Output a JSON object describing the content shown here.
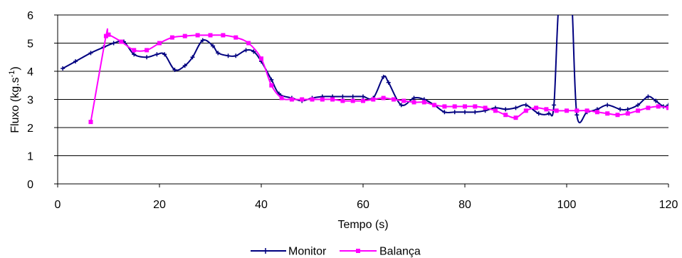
{
  "chart_data": {
    "type": "line",
    "title": "",
    "xlabel": "Tempo (s)",
    "ylabel_main": "Fluxo (kg.s",
    "ylabel_sup": "-1",
    "ylabel_end": ")",
    "xlim": [
      0,
      120
    ],
    "ylim": [
      0,
      6
    ],
    "x_ticks": [
      "0",
      "20",
      "40",
      "60",
      "80",
      "100",
      "120"
    ],
    "y_ticks": [
      "0",
      "1",
      "2",
      "3",
      "4",
      "5",
      "6"
    ],
    "grid": "horizontal",
    "legend_position": "bottom",
    "series": [
      {
        "name": "Monitor",
        "color": "#000080",
        "marker": "plus",
        "points": [
          [
            1,
            4.1
          ],
          [
            3.5,
            4.35
          ],
          [
            6.5,
            4.65
          ],
          [
            9,
            4.85
          ],
          [
            11,
            5.0
          ],
          [
            13,
            5.05
          ],
          [
            15,
            4.6
          ],
          [
            17.5,
            4.5
          ],
          [
            19.5,
            4.6
          ],
          [
            21,
            4.6
          ],
          [
            23,
            4.05
          ],
          [
            25,
            4.2
          ],
          [
            26.5,
            4.5
          ],
          [
            28.5,
            5.1
          ],
          [
            30.5,
            4.9
          ],
          [
            31.5,
            4.65
          ],
          [
            33.5,
            4.55
          ],
          [
            35,
            4.55
          ],
          [
            37,
            4.75
          ],
          [
            38.5,
            4.7
          ],
          [
            40,
            4.35
          ],
          [
            42,
            3.7
          ],
          [
            43.5,
            3.2
          ],
          [
            46,
            3.05
          ],
          [
            48,
            2.95
          ],
          [
            50,
            3.05
          ],
          [
            52,
            3.1
          ],
          [
            54,
            3.1
          ],
          [
            56,
            3.1
          ],
          [
            58,
            3.1
          ],
          [
            60,
            3.1
          ],
          [
            62,
            3.05
          ],
          [
            64,
            3.8
          ],
          [
            65,
            3.6
          ],
          [
            67.5,
            2.8
          ],
          [
            70,
            3.05
          ],
          [
            72,
            3.0
          ],
          [
            74,
            2.8
          ],
          [
            76,
            2.55
          ],
          [
            78,
            2.55
          ],
          [
            80,
            2.55
          ],
          [
            82,
            2.55
          ],
          [
            84,
            2.6
          ],
          [
            86,
            2.7
          ],
          [
            88,
            2.65
          ],
          [
            90,
            2.7
          ],
          [
            92,
            2.8
          ],
          [
            94.5,
            2.5
          ],
          [
            96.5,
            2.5
          ],
          [
            97.5,
            2.8
          ],
          [
            98.5,
            6.5
          ],
          [
            100,
            6.9
          ],
          [
            101,
            6.5
          ],
          [
            102,
            2.45
          ],
          [
            104,
            2.55
          ],
          [
            106,
            2.65
          ],
          [
            108,
            2.8
          ],
          [
            110.5,
            2.65
          ],
          [
            112,
            2.65
          ],
          [
            114,
            2.8
          ],
          [
            116,
            3.1
          ],
          [
            117.5,
            2.95
          ],
          [
            119,
            2.75
          ],
          [
            120,
            2.8
          ]
        ]
      },
      {
        "name": "Balança",
        "color": "#FF00FF",
        "marker": "square",
        "points": [
          [
            6.5,
            2.2
          ],
          [
            9.5,
            5.25
          ],
          [
            10,
            5.3
          ],
          [
            12.5,
            5.05
          ],
          [
            15,
            4.75
          ],
          [
            17.5,
            4.75
          ],
          [
            20,
            5.0
          ],
          [
            22.5,
            5.2
          ],
          [
            25,
            5.25
          ],
          [
            27.5,
            5.28
          ],
          [
            30,
            5.28
          ],
          [
            32.5,
            5.28
          ],
          [
            35,
            5.2
          ],
          [
            37.5,
            5.0
          ],
          [
            40,
            4.45
          ],
          [
            42,
            3.5
          ],
          [
            44,
            3.05
          ],
          [
            46,
            3.0
          ],
          [
            48,
            3.0
          ],
          [
            50,
            3.0
          ],
          [
            52,
            3.0
          ],
          [
            54,
            3.0
          ],
          [
            56,
            2.95
          ],
          [
            58,
            2.95
          ],
          [
            60,
            2.95
          ],
          [
            62,
            3.0
          ],
          [
            64,
            3.05
          ],
          [
            66,
            3.0
          ],
          [
            68,
            2.95
          ],
          [
            70,
            2.9
          ],
          [
            72,
            2.9
          ],
          [
            74,
            2.8
          ],
          [
            76,
            2.75
          ],
          [
            78,
            2.75
          ],
          [
            80,
            2.75
          ],
          [
            82,
            2.75
          ],
          [
            84,
            2.7
          ],
          [
            86,
            2.6
          ],
          [
            88,
            2.45
          ],
          [
            90,
            2.35
          ],
          [
            92,
            2.6
          ],
          [
            94,
            2.7
          ],
          [
            96,
            2.65
          ],
          [
            98,
            2.6
          ],
          [
            100,
            2.6
          ],
          [
            102,
            2.6
          ],
          [
            104,
            2.6
          ],
          [
            106,
            2.55
          ],
          [
            108,
            2.5
          ],
          [
            110,
            2.45
          ],
          [
            112,
            2.5
          ],
          [
            114,
            2.6
          ],
          [
            116,
            2.7
          ],
          [
            118,
            2.75
          ],
          [
            120,
            2.7
          ]
        ]
      }
    ]
  }
}
